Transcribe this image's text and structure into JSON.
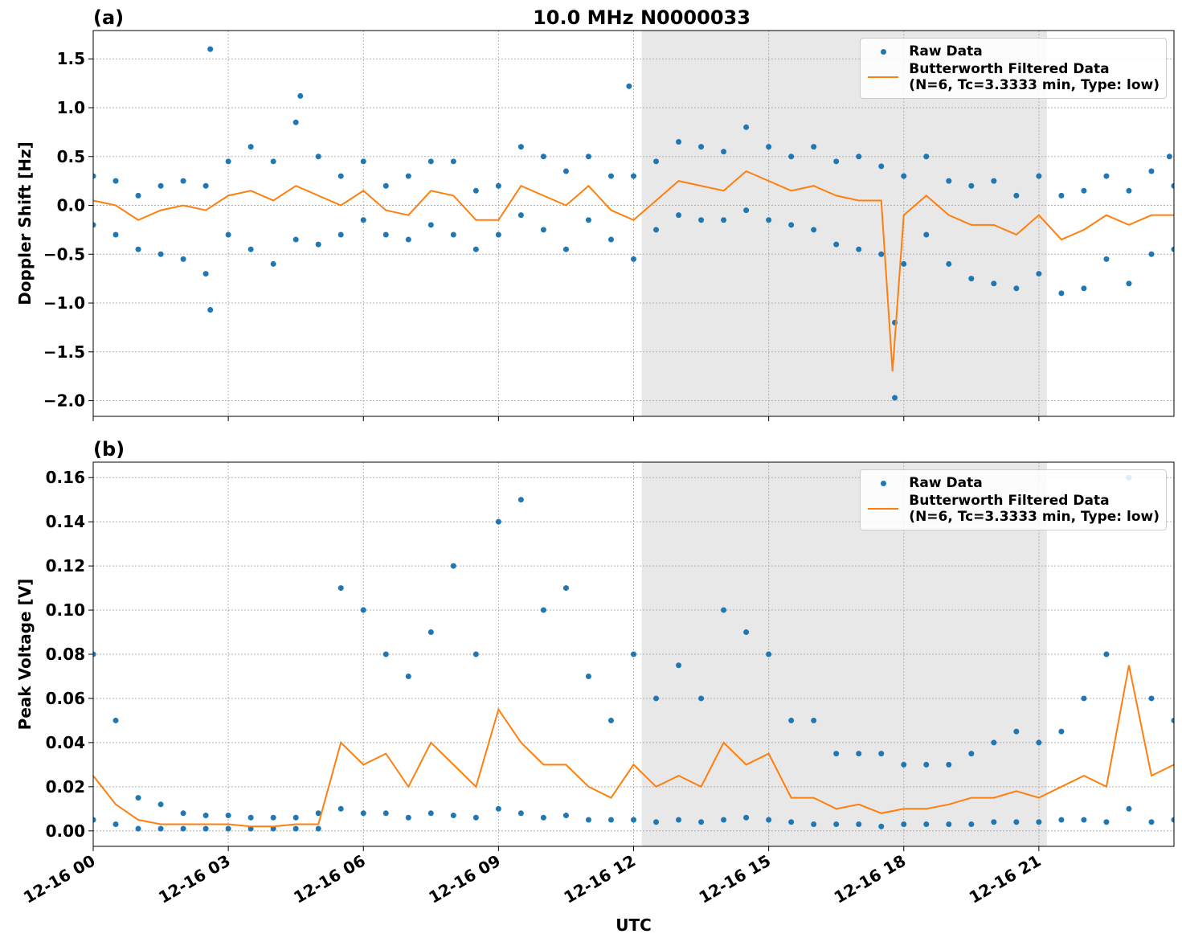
{
  "chart_data": [
    {
      "type": "scatter",
      "panel_label": "(a)",
      "title": "10.0 MHz N0000033",
      "ylabel": "Doppler Shift [Hz]",
      "xlim": [
        0,
        24
      ],
      "xticks": [
        0,
        3,
        6,
        9,
        12,
        15,
        18,
        21
      ],
      "ylim": [
        -2.16,
        1.79
      ],
      "yticks": [
        {
          "value": -2,
          "label": "−2.0"
        },
        {
          "value": -1.5,
          "label": "−1.5"
        },
        {
          "value": -1,
          "label": "−1.0"
        },
        {
          "value": -0.5,
          "label": "−0.5"
        },
        {
          "value": 0,
          "label": "0.0"
        },
        {
          "value": 0.5,
          "label": "0.5"
        },
        {
          "value": 1,
          "label": "1.0"
        },
        {
          "value": 1.5,
          "label": "1.5"
        }
      ],
      "grid": true,
      "legend": "upper right",
      "shaded_span": [
        12.18,
        21.18
      ],
      "shade_color": "#e8e8e8",
      "series": [
        {
          "name": "Raw Data",
          "kind": "points",
          "color": "#1f77b4",
          "x": [
            0,
            0,
            0.5,
            0.5,
            1,
            1,
            1.5,
            1.5,
            2,
            2,
            2.5,
            2.5,
            3,
            3,
            3.5,
            3.5,
            4,
            4,
            4.5,
            4.5,
            5,
            5,
            5.5,
            5.5,
            6,
            6,
            6.5,
            6.5,
            7,
            7,
            7.5,
            7.5,
            8,
            8,
            8.5,
            8.5,
            9,
            9,
            9.5,
            9.5,
            10,
            10,
            10.5,
            10.5,
            11,
            11,
            11.5,
            11.5,
            12,
            12,
            12.5,
            12.5,
            13,
            13,
            13.5,
            13.5,
            14,
            14,
            14.5,
            14.5,
            15,
            15,
            15.5,
            15.5,
            16,
            16,
            16.5,
            16.5,
            17,
            17,
            17.5,
            17.5,
            18,
            18,
            18.5,
            18.5,
            19,
            19,
            19.5,
            19.5,
            20,
            20,
            20.5,
            20.5,
            21,
            21,
            21.5,
            21.5,
            22,
            22,
            22.5,
            22.5,
            23,
            23,
            23.5,
            23.5,
            24,
            24,
            2.6,
            2.6,
            11.9,
            17.8,
            17.8,
            4.6,
            23.9
          ],
          "values": [
            0.3,
            -0.2,
            0.25,
            -0.3,
            0.1,
            -0.45,
            0.2,
            -0.5,
            0.25,
            -0.55,
            0.2,
            -0.7,
            0.45,
            -0.3,
            0.6,
            -0.45,
            0.45,
            -0.6,
            0.85,
            -0.35,
            0.5,
            -0.4,
            0.3,
            -0.3,
            0.45,
            -0.15,
            0.2,
            -0.3,
            0.3,
            -0.35,
            0.45,
            -0.2,
            0.45,
            -0.3,
            0.15,
            -0.45,
            0.2,
            -0.3,
            0.6,
            -0.1,
            0.5,
            -0.25,
            0.35,
            -0.45,
            0.5,
            -0.15,
            0.3,
            -0.35,
            0.3,
            -0.55,
            0.45,
            -0.25,
            0.65,
            -0.1,
            0.6,
            -0.15,
            0.55,
            -0.15,
            0.8,
            -0.05,
            0.6,
            -0.15,
            0.5,
            -0.2,
            0.6,
            -0.25,
            0.45,
            -0.4,
            0.5,
            -0.45,
            0.4,
            -0.5,
            0.3,
            -0.6,
            0.5,
            -0.3,
            0.25,
            -0.6,
            0.2,
            -0.75,
            0.25,
            -0.8,
            0.1,
            -0.85,
            0.3,
            -0.7,
            0.1,
            -0.9,
            0.15,
            -0.85,
            0.3,
            -0.55,
            0.15,
            -0.8,
            0.35,
            -0.5,
            0.2,
            -0.45,
            1.6,
            -1.07,
            1.22,
            -1.97,
            -1.2,
            1.12,
            0.5
          ]
        },
        {
          "name": "Butterworth Filtered Data\n(N=6, Tc=3.3333 min, Type: low)",
          "kind": "line",
          "color": "#ff7f0e",
          "x": [
            0,
            0.5,
            1,
            1.5,
            2,
            2.5,
            3,
            3.5,
            4,
            4.5,
            5,
            5.5,
            6,
            6.5,
            7,
            7.5,
            8,
            8.5,
            9,
            9.5,
            10,
            10.5,
            11,
            11.5,
            12,
            12.5,
            13,
            13.5,
            14,
            14.5,
            15,
            15.5,
            16,
            16.5,
            17,
            17.5,
            17.75,
            18,
            18.5,
            19,
            19.5,
            20,
            20.5,
            21,
            21.5,
            22,
            22.5,
            23,
            23.5,
            24
          ],
          "values": [
            0.05,
            0,
            -0.15,
            -0.05,
            0,
            -0.05,
            0.1,
            0.15,
            0.05,
            0.2,
            0.1,
            0,
            0.15,
            -0.05,
            -0.1,
            0.15,
            0.1,
            -0.15,
            -0.15,
            0.2,
            0.1,
            0,
            0.2,
            -0.05,
            -0.15,
            0.05,
            0.25,
            0.2,
            0.15,
            0.35,
            0.25,
            0.15,
            0.2,
            0.1,
            0.05,
            0.05,
            -1.7,
            -0.1,
            0.1,
            -0.1,
            -0.2,
            -0.2,
            -0.3,
            -0.1,
            -0.35,
            -0.25,
            -0.1,
            -0.2,
            -0.1,
            -0.1
          ]
        }
      ]
    },
    {
      "type": "scatter",
      "panel_label": "(b)",
      "ylabel": "Peak Voltage [V]",
      "xlabel": "UTC",
      "xlim": [
        0,
        24
      ],
      "xticks": [
        {
          "value": 0,
          "label": "12-16 00"
        },
        {
          "value": 3,
          "label": "12-16 03"
        },
        {
          "value": 6,
          "label": "12-16 06"
        },
        {
          "value": 9,
          "label": "12-16 09"
        },
        {
          "value": 12,
          "label": "12-16 12"
        },
        {
          "value": 15,
          "label": "12-16 15"
        },
        {
          "value": 18,
          "label": "12-16 18"
        },
        {
          "value": 21,
          "label": "12-16 21"
        }
      ],
      "ylim": [
        -0.007,
        0.167
      ],
      "yticks": [
        {
          "value": 0,
          "label": "0.00"
        },
        {
          "value": 0.02,
          "label": "0.02"
        },
        {
          "value": 0.04,
          "label": "0.04"
        },
        {
          "value": 0.06,
          "label": "0.06"
        },
        {
          "value": 0.08,
          "label": "0.08"
        },
        {
          "value": 0.1,
          "label": "0.10"
        },
        {
          "value": 0.12,
          "label": "0.12"
        },
        {
          "value": 0.14,
          "label": "0.14"
        },
        {
          "value": 0.16,
          "label": "0.16"
        }
      ],
      "grid": true,
      "legend": "upper right",
      "shaded_span": [
        12.18,
        21.18
      ],
      "shade_color": "#e8e8e8",
      "series": [
        {
          "name": "Raw Data",
          "kind": "points",
          "color": "#1f77b4",
          "x": [
            0,
            0,
            0.5,
            0.5,
            1,
            1,
            1.5,
            1.5,
            2,
            2,
            2.5,
            2.5,
            3,
            3,
            3.5,
            3.5,
            4,
            4,
            4.5,
            4.5,
            5,
            5,
            5.5,
            5.5,
            6,
            6,
            6.5,
            6.5,
            7,
            7,
            7.5,
            7.5,
            8,
            8,
            8.5,
            8.5,
            9,
            9,
            9.5,
            9.5,
            10,
            10,
            10.5,
            10.5,
            11,
            11,
            11.5,
            11.5,
            12,
            12,
            12.5,
            12.5,
            13,
            13,
            13.5,
            13.5,
            14,
            14,
            14.5,
            14.5,
            15,
            15,
            15.5,
            15.5,
            16,
            16,
            16.5,
            16.5,
            17,
            17,
            17.5,
            17.5,
            18,
            18,
            18.5,
            18.5,
            19,
            19,
            19.5,
            19.5,
            20,
            20,
            20.5,
            20.5,
            21,
            21,
            21.5,
            21.5,
            22,
            22,
            22.5,
            22.5,
            23,
            23,
            23.5,
            23.5,
            24,
            24
          ],
          "values": [
            0.08,
            0.005,
            0.05,
            0.003,
            0.015,
            0.001,
            0.012,
            0.001,
            0.008,
            0.001,
            0.007,
            0.001,
            0.007,
            0.001,
            0.006,
            0.001,
            0.006,
            0.001,
            0.006,
            0.001,
            0.008,
            0.001,
            0.11,
            0.01,
            0.1,
            0.008,
            0.08,
            0.008,
            0.07,
            0.006,
            0.09,
            0.008,
            0.12,
            0.007,
            0.08,
            0.006,
            0.14,
            0.01,
            0.15,
            0.008,
            0.1,
            0.006,
            0.11,
            0.007,
            0.07,
            0.005,
            0.05,
            0.005,
            0.08,
            0.005,
            0.06,
            0.004,
            0.075,
            0.005,
            0.06,
            0.004,
            0.1,
            0.005,
            0.09,
            0.006,
            0.08,
            0.005,
            0.05,
            0.004,
            0.05,
            0.003,
            0.035,
            0.003,
            0.035,
            0.003,
            0.035,
            0.002,
            0.03,
            0.003,
            0.03,
            0.003,
            0.03,
            0.003,
            0.035,
            0.003,
            0.04,
            0.004,
            0.045,
            0.004,
            0.04,
            0.004,
            0.045,
            0.005,
            0.06,
            0.005,
            0.08,
            0.004,
            0.16,
            0.01,
            0.06,
            0.004,
            0.05,
            0.005
          ]
        },
        {
          "name": "Butterworth Filtered Data\n(N=6, Tc=3.3333 min, Type: low)",
          "kind": "line",
          "color": "#ff7f0e",
          "x": [
            0,
            0.5,
            1,
            1.5,
            2,
            2.5,
            3,
            3.5,
            4,
            4.5,
            5,
            5.5,
            6,
            6.5,
            7,
            7.5,
            8,
            8.5,
            9,
            9.5,
            10,
            10.5,
            11,
            11.5,
            12,
            12.5,
            13,
            13.5,
            14,
            14.5,
            15,
            15.5,
            16,
            16.5,
            17,
            17.5,
            18,
            18.5,
            19,
            19.5,
            20,
            20.5,
            21,
            21.5,
            22,
            22.5,
            23,
            23.5,
            24
          ],
          "values": [
            0.025,
            0.012,
            0.005,
            0.003,
            0.003,
            0.003,
            0.003,
            0.002,
            0.002,
            0.003,
            0.003,
            0.04,
            0.03,
            0.035,
            0.02,
            0.04,
            0.03,
            0.02,
            0.055,
            0.04,
            0.03,
            0.03,
            0.02,
            0.015,
            0.03,
            0.02,
            0.025,
            0.02,
            0.04,
            0.03,
            0.035,
            0.015,
            0.015,
            0.01,
            0.012,
            0.008,
            0.01,
            0.01,
            0.012,
            0.015,
            0.015,
            0.018,
            0.015,
            0.02,
            0.025,
            0.02,
            0.075,
            0.025,
            0.03
          ]
        }
      ]
    }
  ]
}
